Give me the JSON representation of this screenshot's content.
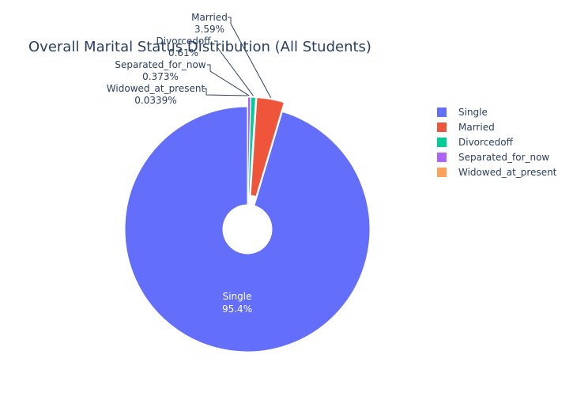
{
  "chart_data": {
    "type": "pie",
    "title": "Overall Marital Status Distribution (All Students)",
    "hole": true,
    "legend_position": "right",
    "slices": [
      {
        "label": "Single",
        "value": 95.4,
        "display": "95.4%",
        "color": "#636efa"
      },
      {
        "label": "Married",
        "value": 3.59,
        "display": "3.59%",
        "color": "#ef553b"
      },
      {
        "label": "Divorcedoff",
        "value": 0.61,
        "display": "0.61%",
        "color": "#00cc96"
      },
      {
        "label": "Separated_for_now",
        "value": 0.373,
        "display": "0.373%",
        "color": "#ab63fa"
      },
      {
        "label": "Widowed_at_present",
        "value": 0.0339,
        "display": "0.0339%",
        "color": "#ffa15a"
      }
    ]
  }
}
